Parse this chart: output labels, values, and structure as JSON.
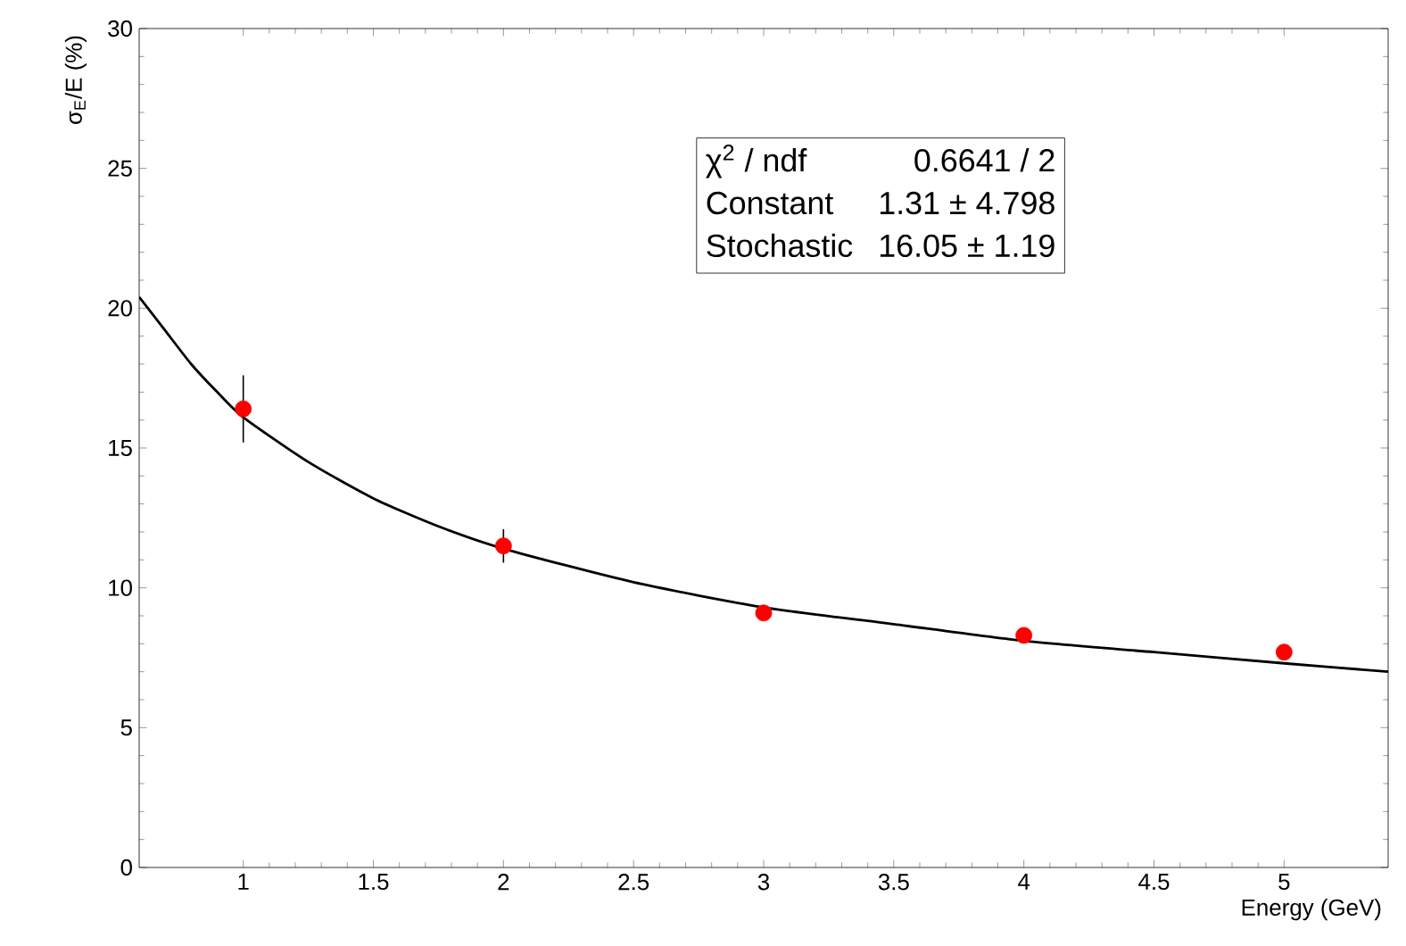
{
  "chart_data": {
    "type": "scatter",
    "xlabel": "Energy (GeV)",
    "ylabel": "σ$_{E}$/E (%)",
    "series": [
      {
        "color": "#ff0000",
        "x": [
          1,
          2,
          3,
          4,
          5
        ],
        "values": [
          16.4,
          11.5,
          9.1,
          8.3,
          7.7
        ],
        "errors": [
          1.2,
          0.6,
          null,
          null,
          null
        ]
      },
      {
        "type": "line",
        "color": "#000000",
        "x": [
          0.6,
          0.7,
          0.8,
          0.9,
          1,
          1.25,
          1.5,
          1.75,
          2,
          2.5,
          3,
          3.5,
          4,
          4.5,
          5,
          5.4
        ],
        "values": [
          20.4,
          19.2,
          18.0,
          17.0,
          16.1,
          14.5,
          13.2,
          12.2,
          11.4,
          10.2,
          9.3,
          8.7,
          8.1,
          7.7,
          7.3,
          7.0
        ]
      }
    ],
    "xlim": [
      0.6,
      5.4
    ],
    "ylim": [
      0,
      30
    ],
    "xticks": [
      1,
      1.5,
      2,
      2.5,
      3,
      3.5,
      4,
      4.5,
      5
    ],
    "yticks": [
      0,
      5,
      10,
      15,
      20,
      25,
      30
    ],
    "grid": false,
    "annotations": [
      "χ$^{2}$ / ndf",
      "0.6641 / 2",
      "Constant",
      "1.31 ± 4.798",
      "Stochastic",
      "16.05 ±  1.19"
    ]
  }
}
